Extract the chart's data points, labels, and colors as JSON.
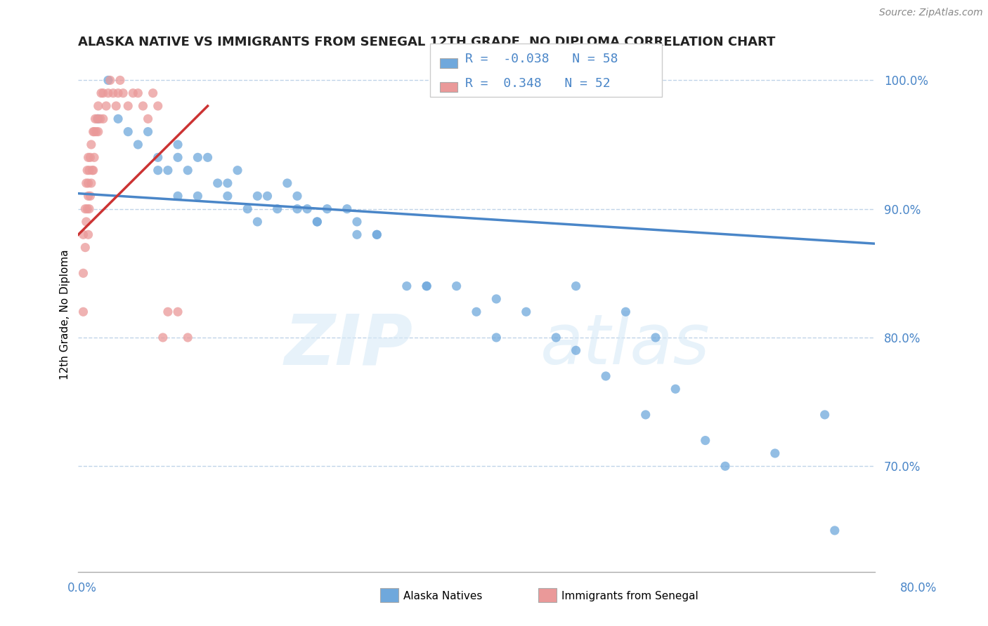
{
  "title": "ALASKA NATIVE VS IMMIGRANTS FROM SENEGAL 12TH GRADE, NO DIPLOMA CORRELATION CHART",
  "source": "Source: ZipAtlas.com",
  "xlabel_bottom_left": "0.0%",
  "xlabel_bottom_right": "80.0%",
  "ylabel": "12th Grade, No Diploma",
  "xmin": 0.0,
  "xmax": 0.8,
  "ymin": 0.618,
  "ymax": 1.018,
  "yticks": [
    0.7,
    0.8,
    0.9,
    1.0
  ],
  "ytick_labels": [
    "70.0%",
    "80.0%",
    "90.0%",
    "100.0%"
  ],
  "blue_R": -0.038,
  "blue_N": 58,
  "pink_R": 0.348,
  "pink_N": 52,
  "blue_color": "#6fa8dc",
  "pink_color": "#ea9999",
  "blue_line_color": "#4a86c8",
  "pink_line_color": "#cc3333",
  "legend_label_blue": "Alaska Natives",
  "legend_label_pink": "Immigrants from Senegal",
  "blue_scatter_x": [
    0.03,
    0.04,
    0.05,
    0.07,
    0.08,
    0.09,
    0.1,
    0.1,
    0.11,
    0.12,
    0.13,
    0.14,
    0.15,
    0.16,
    0.17,
    0.18,
    0.19,
    0.21,
    0.22,
    0.23,
    0.24,
    0.25,
    0.27,
    0.28,
    0.3,
    0.33,
    0.35,
    0.4,
    0.42,
    0.5,
    0.55,
    0.58,
    0.6,
    0.65,
    0.7,
    0.75,
    0.76,
    0.02,
    0.06,
    0.08,
    0.1,
    0.12,
    0.15,
    0.18,
    0.2,
    0.22,
    0.24,
    0.28,
    0.3,
    0.35,
    0.38,
    0.42,
    0.45,
    0.48,
    0.5,
    0.53,
    0.57,
    0.63
  ],
  "blue_scatter_y": [
    1.0,
    0.97,
    0.96,
    0.96,
    0.94,
    0.93,
    0.94,
    0.91,
    0.93,
    0.91,
    0.94,
    0.92,
    0.91,
    0.93,
    0.9,
    0.91,
    0.91,
    0.92,
    0.9,
    0.9,
    0.89,
    0.9,
    0.9,
    0.89,
    0.88,
    0.84,
    0.84,
    0.82,
    0.8,
    0.84,
    0.82,
    0.8,
    0.76,
    0.7,
    0.71,
    0.74,
    0.65,
    0.97,
    0.95,
    0.93,
    0.95,
    0.94,
    0.92,
    0.89,
    0.9,
    0.91,
    0.89,
    0.88,
    0.88,
    0.84,
    0.84,
    0.83,
    0.82,
    0.8,
    0.79,
    0.77,
    0.74,
    0.72
  ],
  "pink_scatter_x": [
    0.005,
    0.005,
    0.005,
    0.007,
    0.007,
    0.008,
    0.008,
    0.009,
    0.009,
    0.01,
    0.01,
    0.01,
    0.01,
    0.011,
    0.011,
    0.012,
    0.012,
    0.013,
    0.013,
    0.014,
    0.015,
    0.015,
    0.016,
    0.016,
    0.017,
    0.018,
    0.019,
    0.02,
    0.02,
    0.022,
    0.023,
    0.025,
    0.025,
    0.028,
    0.03,
    0.032,
    0.035,
    0.038,
    0.04,
    0.042,
    0.045,
    0.05,
    0.055,
    0.06,
    0.065,
    0.07,
    0.075,
    0.08,
    0.085,
    0.09,
    0.1,
    0.11
  ],
  "pink_scatter_y": [
    0.88,
    0.85,
    0.82,
    0.9,
    0.87,
    0.92,
    0.89,
    0.93,
    0.9,
    0.94,
    0.92,
    0.91,
    0.88,
    0.93,
    0.9,
    0.94,
    0.91,
    0.95,
    0.92,
    0.93,
    0.96,
    0.93,
    0.96,
    0.94,
    0.97,
    0.96,
    0.97,
    0.98,
    0.96,
    0.97,
    0.99,
    0.99,
    0.97,
    0.98,
    0.99,
    1.0,
    0.99,
    0.98,
    0.99,
    1.0,
    0.99,
    0.98,
    0.99,
    0.99,
    0.98,
    0.97,
    0.99,
    0.98,
    0.8,
    0.82,
    0.82,
    0.8
  ],
  "blue_trend_x": [
    0.0,
    0.8
  ],
  "blue_trend_y": [
    0.912,
    0.873
  ],
  "pink_trend_x": [
    0.0,
    0.13
  ],
  "pink_trend_y": [
    0.88,
    0.98
  ]
}
